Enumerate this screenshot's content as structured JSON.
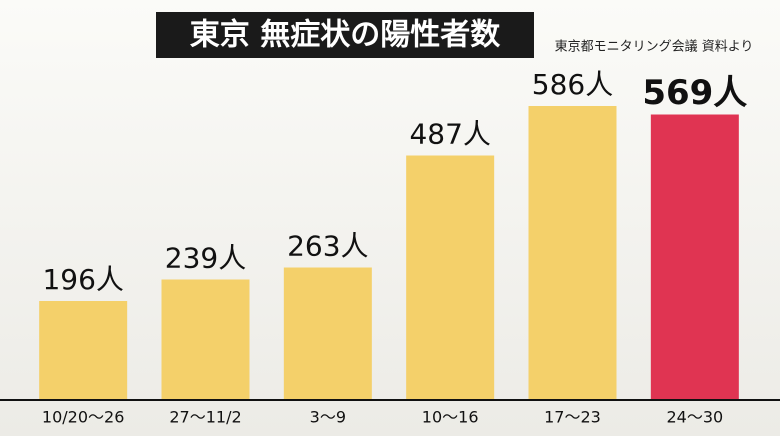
{
  "chart_data": {
    "type": "bar",
    "title": "東京 無症状の陽性者数",
    "source": "東京都モニタリング会議 資料より",
    "categories": [
      "10/20～26",
      "27～11/2",
      "3～9",
      "10～16",
      "17～23",
      "24～30"
    ],
    "values": [
      196,
      239,
      263,
      487,
      586,
      569
    ],
    "value_labels": [
      "196人",
      "239人",
      "263人",
      "487人",
      "586人",
      "569人"
    ],
    "colors": [
      "#f4d06a",
      "#f4d06a",
      "#f4d06a",
      "#f4d06a",
      "#f4d06a",
      "#e03452"
    ]
  }
}
